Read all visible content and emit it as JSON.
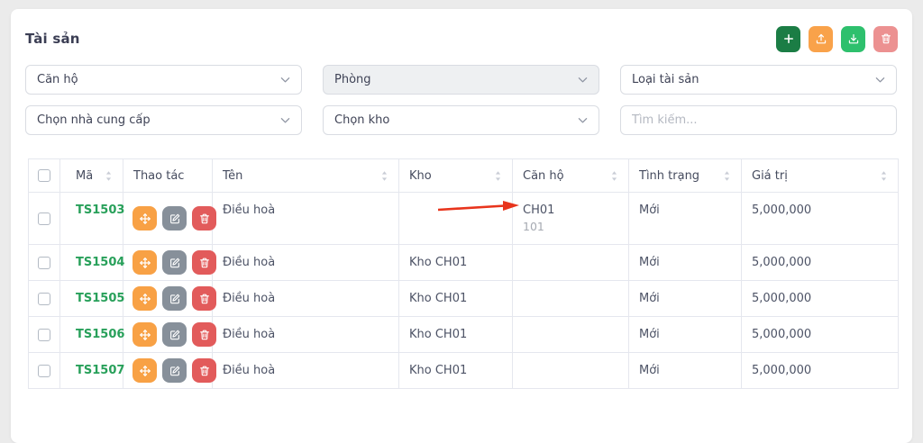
{
  "page": {
    "title": "Tài sản"
  },
  "toolbar": {
    "buttons": [
      {
        "name": "add",
        "icon": "plus-icon",
        "color": "#1b7d45"
      },
      {
        "name": "upload",
        "icon": "upload-icon",
        "color": "#f9a24a"
      },
      {
        "name": "download",
        "icon": "download-icon",
        "color": "#2ec06d"
      },
      {
        "name": "delete",
        "icon": "trash-icon",
        "color": "#ec9191"
      }
    ]
  },
  "filters": {
    "apartment": "Căn hộ",
    "room": "Phòng",
    "asset_type": "Loại tài sản",
    "supplier": "Chọn nhà cung cấp",
    "warehouse": "Chọn kho",
    "search_placeholder": "Tìm kiếm..."
  },
  "table": {
    "columns": [
      {
        "label": "Mã",
        "sortable": true
      },
      {
        "label": "Thao tác",
        "sortable": false
      },
      {
        "label": "Tên",
        "sortable": true
      },
      {
        "label": "Kho",
        "sortable": true
      },
      {
        "label": "Căn hộ",
        "sortable": true
      },
      {
        "label": "Tình trạng",
        "sortable": true
      },
      {
        "label": "Giá trị",
        "sortable": true
      }
    ],
    "row_actions": [
      {
        "name": "move",
        "icon": "move-icon",
        "color": "#f8a145"
      },
      {
        "name": "edit",
        "icon": "edit-icon",
        "color": "#87909a"
      },
      {
        "name": "delete",
        "icon": "trash-icon",
        "color": "#e25b5b"
      }
    ],
    "rows": [
      {
        "code": "TS1503",
        "name": "Điều hoà",
        "warehouse": "",
        "apartment": "CH01",
        "apartment_room": "101",
        "status": "Mới",
        "value": "5,000,000"
      },
      {
        "code": "TS1504",
        "name": "Điều hoà",
        "warehouse": "Kho CH01",
        "apartment": "",
        "apartment_room": "",
        "status": "Mới",
        "value": "5,000,000"
      },
      {
        "code": "TS1505",
        "name": "Điều hoà",
        "warehouse": "Kho CH01",
        "apartment": "",
        "apartment_room": "",
        "status": "Mới",
        "value": "5,000,000"
      },
      {
        "code": "TS1506",
        "name": "Điều hoà",
        "warehouse": "Kho CH01",
        "apartment": "",
        "apartment_room": "",
        "status": "Mới",
        "value": "5,000,000"
      },
      {
        "code": "TS1507",
        "name": "Điều hoà",
        "warehouse": "Kho CH01",
        "apartment": "",
        "apartment_room": "",
        "status": "Mới",
        "value": "5,000,000"
      }
    ],
    "code_color": "#28a05a"
  },
  "annotation": {
    "arrow_color": "#e8341c"
  }
}
